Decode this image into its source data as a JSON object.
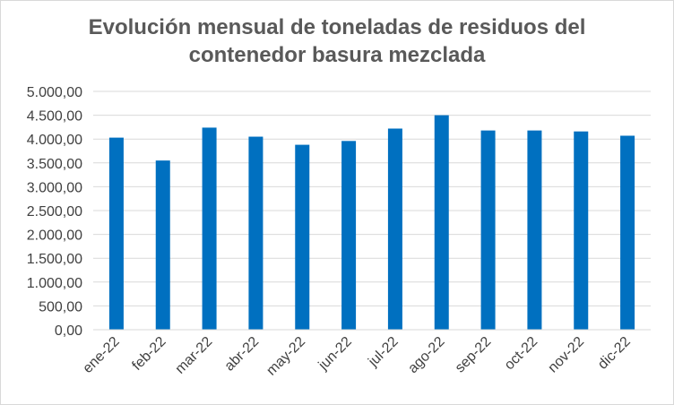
{
  "chart_data": {
    "type": "bar",
    "title_line1": "Evolución mensual de toneladas de residuos del",
    "title_line2": "contenedor basura mezclada",
    "xlabel": "",
    "ylabel": "",
    "categories": [
      "ene-22",
      "feb-22",
      "mar-22",
      "abr-22",
      "may-22",
      "jun-22",
      "jul-22",
      "ago-22",
      "sep-22",
      "oct-22",
      "nov-22",
      "dic-22"
    ],
    "values": [
      4030,
      3550,
      4240,
      4050,
      3880,
      3960,
      4220,
      4500,
      4180,
      4180,
      4160,
      4070
    ],
    "ylim": [
      0,
      5000
    ],
    "yticks": [
      "0,00",
      "500,00",
      "1.000,00",
      "1.500,00",
      "2.000,00",
      "2.500,00",
      "3.000,00",
      "3.500,00",
      "4.000,00",
      "4.500,00",
      "5.000,00"
    ],
    "grid": true,
    "legend": "none",
    "bar_color": "#0070C0",
    "grid_color": "#d9d9d9"
  }
}
